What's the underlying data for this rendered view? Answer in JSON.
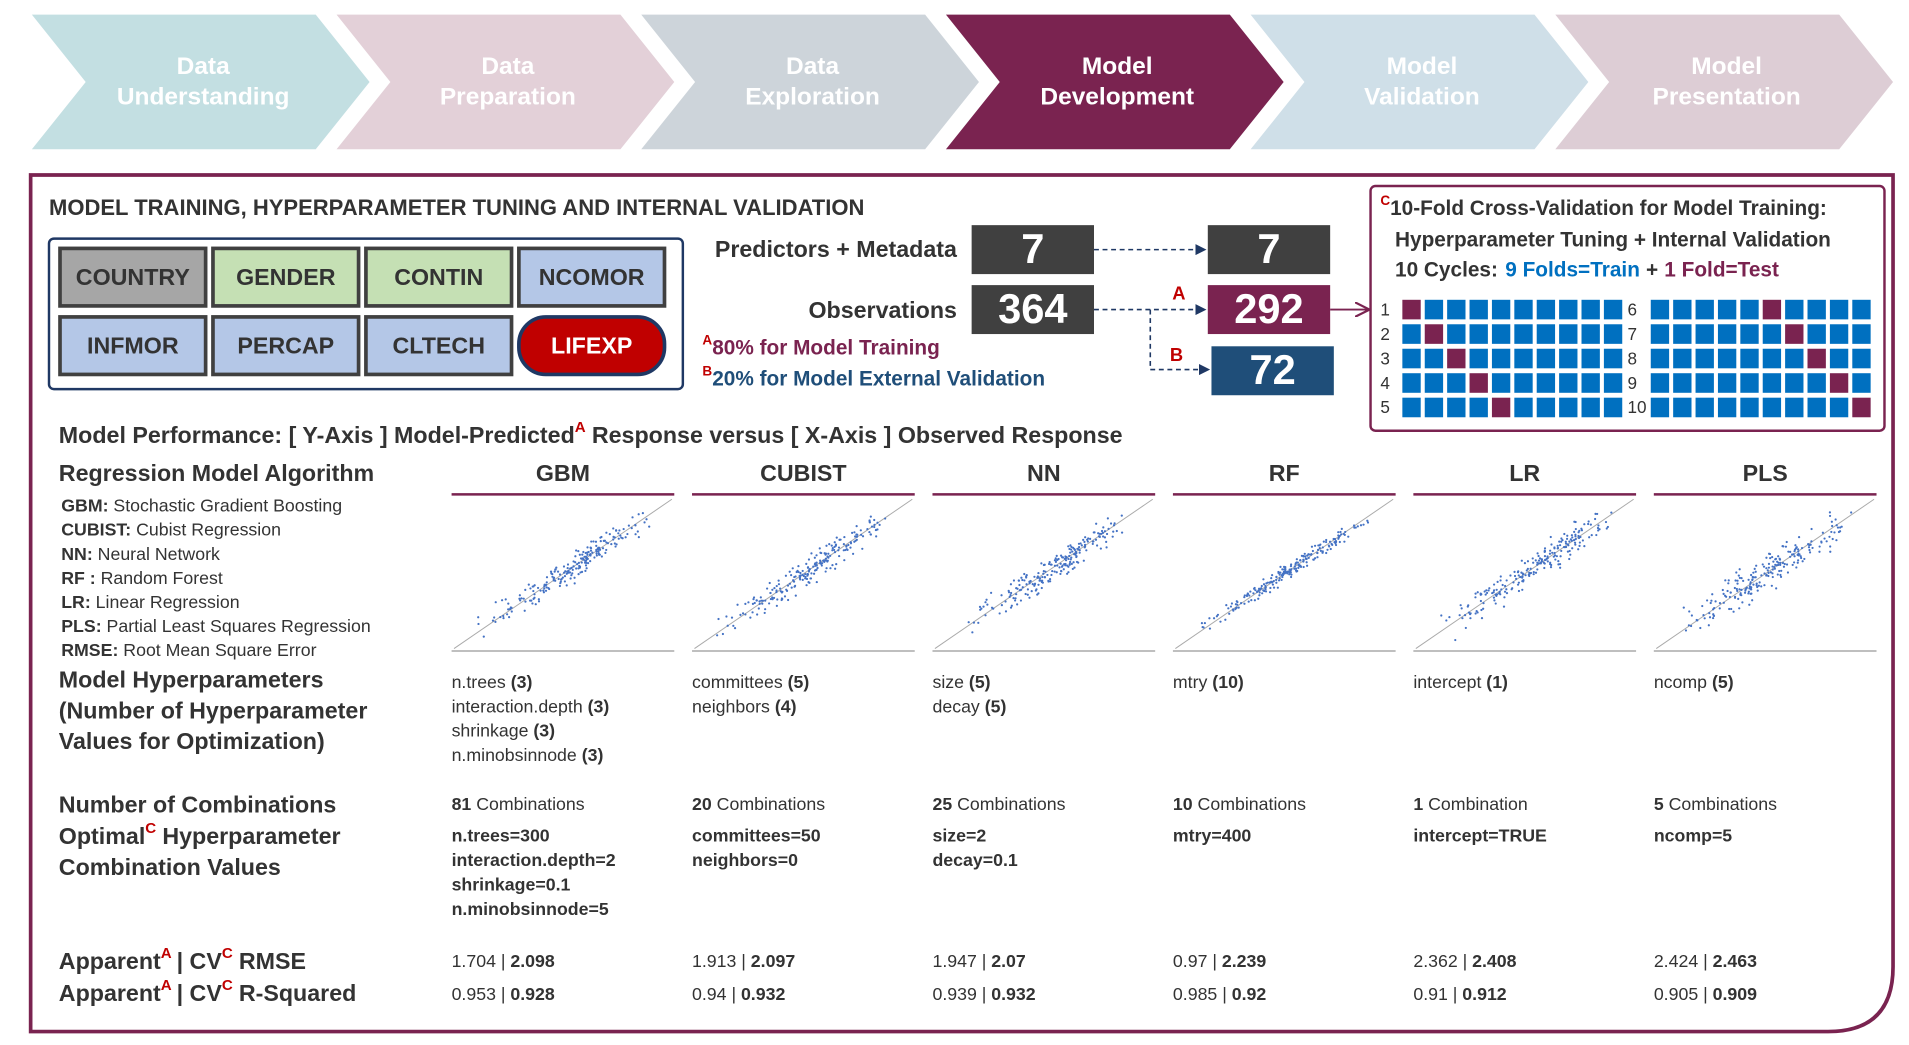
{
  "process": [
    {
      "lines": [
        "Data",
        "Understanding"
      ],
      "color": "#c3dfe2"
    },
    {
      "lines": [
        "Data",
        "Preparation"
      ],
      "color": "#e3d0d8"
    },
    {
      "lines": [
        "Data",
        "Exploration"
      ],
      "color": "#cdd4da"
    },
    {
      "lines": [
        "Model",
        "Development"
      ],
      "color": "#7a2350"
    },
    {
      "lines": [
        "Model",
        "Validation"
      ],
      "color": "#cfdfe8"
    },
    {
      "lines": [
        "Model",
        "Presentation"
      ],
      "color": "#ddcdd5"
    }
  ],
  "panel": {
    "title": "MODEL TRAINING, HYPERPARAMETER TUNING AND INTERNAL VALIDATION",
    "variables": [
      {
        "label": "COUNTRY",
        "color": "#a6a6a6"
      },
      {
        "label": "GENDER",
        "color": "#c5e0b4"
      },
      {
        "label": "CONTIN",
        "color": "#c5e0b4"
      },
      {
        "label": "NCOMOR",
        "color": "#b4c7e7"
      },
      {
        "label": "INFMOR",
        "color": "#b4c7e7"
      },
      {
        "label": "PERCAP",
        "color": "#b4c7e7"
      },
      {
        "label": "CLTECH",
        "color": "#b4c7e7"
      },
      {
        "label": "LIFEXP",
        "color": "#c00000",
        "shape": "oval"
      }
    ],
    "predictors": {
      "label": "Predictors + Metadata",
      "total": 7,
      "train": 7
    },
    "observations": {
      "label": "Observations",
      "total": 364,
      "train": 292,
      "test": 72
    },
    "markers": {
      "a": "A",
      "b": "B",
      "c": "C"
    },
    "notes": {
      "a": "80% for Model Training",
      "b": "20% for Model External Validation"
    },
    "cv": {
      "title": [
        "10-Fold Cross-Validation for Model Training:",
        "Hyperparameter Tuning + Internal Validation"
      ],
      "cycles_label": "10 Cycles:",
      "train_label": "9 Folds=Train",
      "plus": "+",
      "test_label": "1 Fold=Test",
      "cycles": [
        1,
        2,
        3,
        4,
        5,
        6,
        7,
        8,
        9,
        10
      ],
      "train_color": "#0070c0",
      "test_color": "#7a2350"
    }
  },
  "performance": {
    "title": [
      "Model Performance: [ Y-Axis ] Model-Predicted",
      "Response versus [ X-Axis ] Observed Response"
    ],
    "algorithm_label": "Regression Model Algorithm",
    "legend": [
      {
        "abbr": "GBM:",
        "text": "Stochastic Gradient Boosting"
      },
      {
        "abbr": "CUBIST:",
        "text": "Cubist Regression"
      },
      {
        "abbr": "NN:",
        "text": "Neural Network"
      },
      {
        "abbr": "RF :",
        "text": "Random Forest"
      },
      {
        "abbr": "LR:",
        "text": "Linear Regression"
      },
      {
        "abbr": "PLS:",
        "text": "Partial Least Squares Regression"
      },
      {
        "abbr": "RMSE:",
        "text": "Root Mean Square Error"
      }
    ],
    "hyper_label": [
      "Model Hyperparameters",
      "(Number of Hyperparameter",
      "Values for Optimization)"
    ],
    "combinations_label": "Number of Combinations",
    "optimal_label": [
      "Optimal",
      "Hyperparameter",
      "Combination Values"
    ],
    "rmse_label": [
      "Apparent",
      "| CV",
      "RMSE"
    ],
    "r2_label": [
      "Apparent",
      "| CV",
      "R-Squared"
    ],
    "separator": "|",
    "point_color": "#4472c4",
    "models": [
      {
        "name": "GBM",
        "hyperparameters": [
          {
            "name": "n.trees",
            "count": "(3)"
          },
          {
            "name": "interaction.depth",
            "count": "(3)"
          },
          {
            "name": "shrinkage",
            "count": "(3)"
          },
          {
            "name": "n.minobsinnode",
            "count": "(3)"
          }
        ],
        "combinations": 81,
        "combinations_text": "Combinations",
        "optimal": [
          "n.trees=300",
          "interaction.depth=2",
          "shrinkage=0.1",
          "n.minobsinnode=5"
        ],
        "rmse_apparent": 1.704,
        "rmse_cv": 2.098,
        "r2_apparent": 0.953,
        "r2_cv": 0.928
      },
      {
        "name": "CUBIST",
        "hyperparameters": [
          {
            "name": "committees",
            "count": "(5)"
          },
          {
            "name": "neighbors",
            "count": "(4)"
          }
        ],
        "combinations": 20,
        "combinations_text": "Combinations",
        "optimal": [
          "committees=50",
          "neighbors=0"
        ],
        "rmse_apparent": 1.913,
        "rmse_cv": 2.097,
        "r2_apparent": 0.94,
        "r2_cv": 0.932
      },
      {
        "name": "NN",
        "hyperparameters": [
          {
            "name": "size",
            "count": "(5)"
          },
          {
            "name": "decay",
            "count": "(5)"
          }
        ],
        "combinations": 25,
        "combinations_text": "Combinations",
        "optimal": [
          "size=2",
          "decay=0.1"
        ],
        "rmse_apparent": 1.947,
        "rmse_cv": 2.07,
        "r2_apparent": 0.939,
        "r2_cv": 0.932
      },
      {
        "name": "RF",
        "hyperparameters": [
          {
            "name": "mtry",
            "count": "(10)"
          }
        ],
        "combinations": 10,
        "combinations_text": "Combinations",
        "optimal": [
          "mtry=400"
        ],
        "rmse_apparent": 0.97,
        "rmse_cv": 2.239,
        "r2_apparent": 0.985,
        "r2_cv": 0.92
      },
      {
        "name": "LR",
        "hyperparameters": [
          {
            "name": "intercept",
            "count": "(1)"
          }
        ],
        "combinations": 1,
        "combinations_text": "Combination",
        "optimal": [
          "intercept=TRUE"
        ],
        "rmse_apparent": 2.362,
        "rmse_cv": 2.408,
        "r2_apparent": 0.91,
        "r2_cv": 0.912
      },
      {
        "name": "PLS",
        "hyperparameters": [
          {
            "name": "ncomp",
            "count": "(5)"
          }
        ],
        "combinations": 5,
        "combinations_text": "Combinations",
        "optimal": [
          "ncomp=5"
        ],
        "rmse_apparent": 2.424,
        "rmse_cv": 2.463,
        "r2_apparent": 0.905,
        "r2_cv": 0.909
      }
    ]
  }
}
